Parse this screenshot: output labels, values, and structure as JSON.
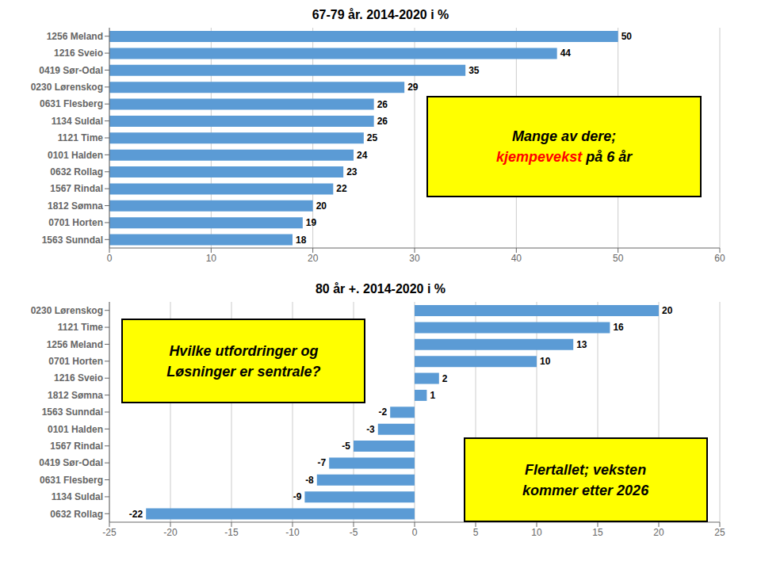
{
  "chart_data": [
    {
      "type": "bar",
      "orientation": "horizontal",
      "title": "67-79 år. 2014-2020 i %",
      "categories": [
        "1563 Sunndal",
        "0701 Horten",
        "1812 Sømna",
        "1567 Rindal",
        "0632 Rollag",
        "0101 Halden",
        "1121 Time",
        "1134 Suldal",
        "0631 Flesberg",
        "0230 Lørenskog",
        "0419 Sør-Odal",
        "1216 Sveio",
        "1256 Meland"
      ],
      "values": [
        18,
        19,
        20,
        22,
        23,
        24,
        25,
        26,
        26,
        29,
        35,
        44,
        50
      ],
      "color": "#5B9BD5",
      "xlim": [
        0,
        60
      ],
      "xticks": [
        0,
        10,
        20,
        30,
        40,
        50,
        60
      ],
      "grid": true,
      "data_labels": true,
      "annotations": [
        {
          "lines": [
            [
              {
                "text": "Mange av dere;",
                "color": "#000000"
              }
            ],
            [
              {
                "text": "kjempevekst",
                "color": "#FF0000"
              },
              {
                "text": " på 6 år",
                "color": "#000000"
              }
            ]
          ],
          "color": "#FFFF00",
          "edge_color": "#000000"
        }
      ]
    },
    {
      "type": "bar",
      "orientation": "horizontal",
      "title": "80 år +. 2014-2020 i %",
      "categories": [
        "0632 Rollag",
        "1134 Suldal",
        "0631 Flesberg",
        "0419 Sør-Odal",
        "1567 Rindal",
        "0101 Halden",
        "1563 Sunndal",
        "1812 Sømna",
        "1216 Sveio",
        "0701 Horten",
        "1256 Meland",
        "1121 Time",
        "0230 Lørenskog"
      ],
      "values": [
        -22,
        -9,
        -8,
        -7,
        -5,
        -3,
        -2,
        1,
        2,
        10,
        13,
        16,
        20
      ],
      "color": "#5B9BD5",
      "xlim": [
        -25,
        25
      ],
      "xticks": [
        -25,
        -20,
        -15,
        -10,
        -5,
        0,
        5,
        10,
        15,
        20,
        25
      ],
      "grid": true,
      "data_labels": true,
      "annotations": [
        {
          "lines": [
            [
              {
                "text": "Hvilke utfordringer og",
                "color": "#000000"
              }
            ],
            [
              {
                "text": "Løsninger er sentrale?",
                "color": "#000000"
              }
            ]
          ],
          "color": "#FFFF00",
          "edge_color": "#000000"
        },
        {
          "lines": [
            [
              {
                "text": "Flertallet; veksten",
                "color": "#000000"
              }
            ],
            [
              {
                "text": "kommer etter 2026",
                "color": "#000000"
              }
            ]
          ],
          "color": "#FFFF00",
          "edge_color": "#000000"
        }
      ]
    }
  ]
}
